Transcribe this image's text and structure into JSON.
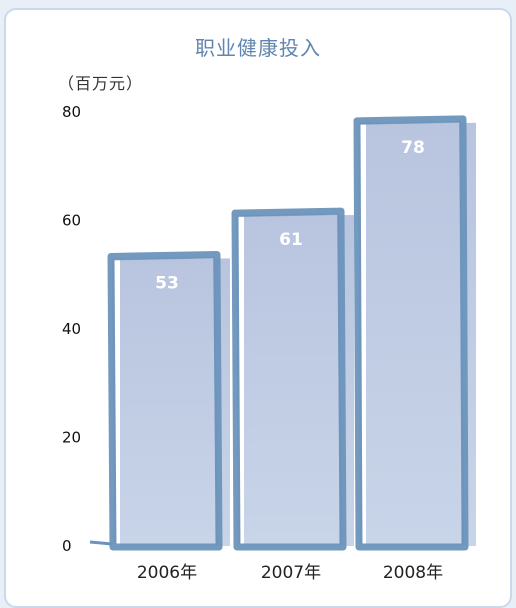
{
  "chart_data": {
    "type": "bar",
    "title": "职业健康投入",
    "unit_label": "（百万元）",
    "categories": [
      "2006年",
      "2007年",
      "2008年"
    ],
    "values": [
      53,
      61,
      78
    ],
    "ylim": [
      0,
      80
    ],
    "yticks": [
      0,
      20,
      40,
      60,
      80
    ],
    "xlabel": "",
    "ylabel": "",
    "grid": false,
    "legend": "none",
    "colors": {
      "bar_fill_top": "#b9c5df",
      "bar_fill_bottom": "#c8d4e8",
      "bar_outline": "#6b93bb",
      "title": "#5f86ae",
      "data_label": "#ffffff"
    }
  }
}
